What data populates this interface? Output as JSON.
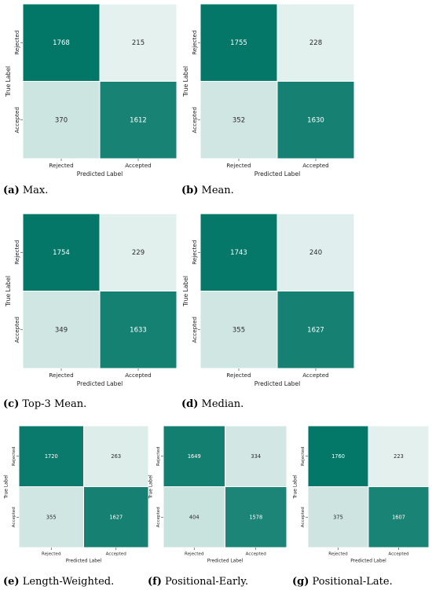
{
  "chart_data": [
    {
      "type": "heatmap",
      "title": "",
      "xlabel": "Predicted Label",
      "ylabel": "True Label",
      "x_categories": [
        "Rejected",
        "Accepted"
      ],
      "y_categories": [
        "Rejected",
        "Accepted"
      ],
      "values": [
        [
          1768,
          215
        ],
        [
          370,
          1612
        ]
      ],
      "caption_tag": "(a)",
      "caption_text": " Max."
    },
    {
      "type": "heatmap",
      "title": "",
      "xlabel": "Predicted Label",
      "ylabel": "True Label",
      "x_categories": [
        "Rejected",
        "Accepted"
      ],
      "y_categories": [
        "Rejected",
        "Accepted"
      ],
      "values": [
        [
          1755,
          228
        ],
        [
          352,
          1630
        ]
      ],
      "caption_tag": "(b)",
      "caption_text": " Mean."
    },
    {
      "type": "heatmap",
      "title": "",
      "xlabel": "Predicted Label",
      "ylabel": "True Label",
      "x_categories": [
        "Rejected",
        "Accepted"
      ],
      "y_categories": [
        "Rejected",
        "Accepted"
      ],
      "values": [
        [
          1754,
          229
        ],
        [
          349,
          1633
        ]
      ],
      "caption_tag": "(c)",
      "caption_text": " Top-3 Mean."
    },
    {
      "type": "heatmap",
      "title": "",
      "xlabel": "Predicted Label",
      "ylabel": "True Label",
      "x_categories": [
        "Rejected",
        "Accepted"
      ],
      "y_categories": [
        "Rejected",
        "Accepted"
      ],
      "values": [
        [
          1743,
          240
        ],
        [
          355,
          1627
        ]
      ],
      "caption_tag": "(d)",
      "caption_text": " Median."
    },
    {
      "type": "heatmap",
      "title": "",
      "xlabel": "Predicted Label",
      "ylabel": "True Label",
      "x_categories": [
        "Rejected",
        "Accepted"
      ],
      "y_categories": [
        "Rejected",
        "Accepted"
      ],
      "values": [
        [
          1720,
          263
        ],
        [
          355,
          1627
        ]
      ],
      "caption_tag": "(e)",
      "caption_text": " Length-Weighted."
    },
    {
      "type": "heatmap",
      "title": "",
      "xlabel": "Predicted Label",
      "ylabel": "True Label",
      "x_categories": [
        "Rejected",
        "Accepted"
      ],
      "y_categories": [
        "Rejected",
        "Accepted"
      ],
      "values": [
        [
          1649,
          334
        ],
        [
          404,
          1578
        ]
      ],
      "caption_tag": "(f)",
      "caption_text": " Positional-Early."
    },
    {
      "type": "heatmap",
      "title": "",
      "xlabel": "Predicted Label",
      "ylabel": "True Label",
      "x_categories": [
        "Rejected",
        "Accepted"
      ],
      "y_categories": [
        "Rejected",
        "Accepted"
      ],
      "values": [
        [
          1760,
          223
        ],
        [
          375,
          1607
        ]
      ],
      "caption_tag": "(g)",
      "caption_text": " Positional-Late."
    }
  ],
  "colors": {
    "high": "#007566",
    "low": "#e6f2f0",
    "text_light": "#ffffff",
    "text_dark": "#2a2a2a",
    "caption": "#000000"
  },
  "color_scale": {
    "min": 200,
    "max": 1780
  }
}
